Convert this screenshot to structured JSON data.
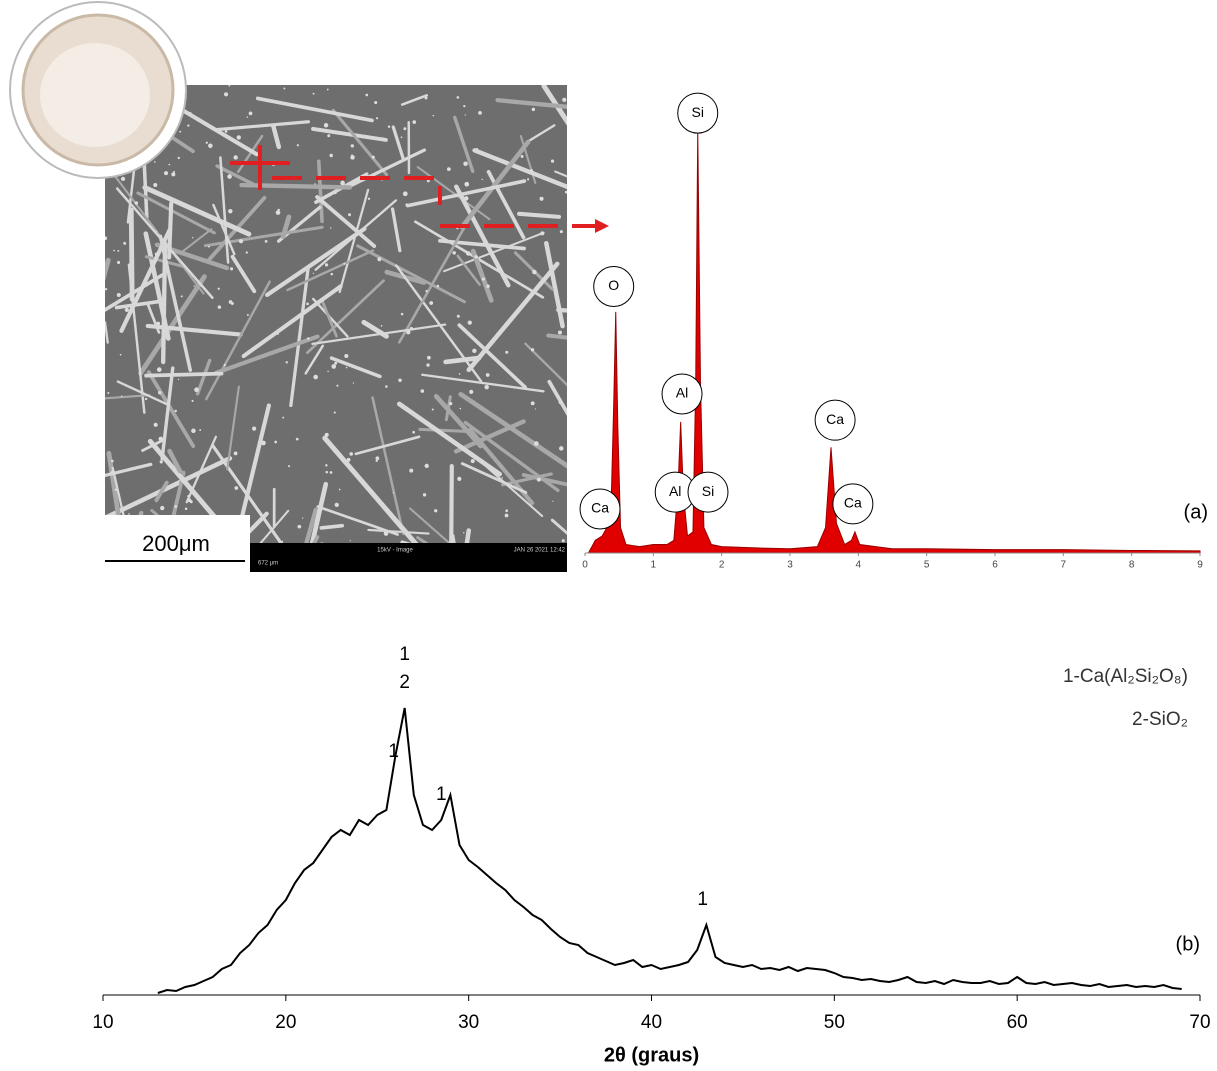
{
  "sem_image": {
    "scale_bar": "200μm",
    "footer_left": "672 μm",
    "footer_center": "15kV - Image",
    "footer_right": "JAN 26 2021 12:42"
  },
  "chart_data": [
    {
      "type": "area",
      "panel_label": "(a)",
      "color": "#e00000",
      "x": [
        0.05,
        0.15,
        0.25,
        0.32,
        0.38,
        0.42,
        0.45,
        0.48,
        0.52,
        0.6,
        0.8,
        1.0,
        1.2,
        1.3,
        1.36,
        1.4,
        1.44,
        1.5,
        1.58,
        1.62,
        1.65,
        1.69,
        1.74,
        1.85,
        2.0,
        2.5,
        3.0,
        3.4,
        3.52,
        3.6,
        3.68,
        3.8,
        3.9,
        3.95,
        4.02,
        4.5,
        5,
        6,
        7,
        8,
        9
      ],
      "values": [
        0,
        3,
        4,
        6,
        10,
        35,
        57,
        30,
        6,
        2,
        1.5,
        2,
        2,
        3,
        15,
        31,
        14,
        4,
        5,
        40,
        100,
        40,
        6,
        2,
        1.5,
        1.2,
        1,
        1.5,
        6,
        25,
        7,
        2,
        3,
        5,
        2,
        1,
        1,
        0.8,
        0.8,
        0.6,
        0.5
      ],
      "xlim": [
        0,
        9
      ],
      "ylim": [
        0,
        100
      ],
      "xticks": [
        0,
        1,
        2,
        3,
        4,
        5,
        6,
        7,
        8,
        9
      ],
      "annotations": [
        {
          "text": "Ca",
          "x": 0.22,
          "y": 10.4
        },
        {
          "text": "O",
          "x": 0.42,
          "y": 63
        },
        {
          "text": "Al",
          "x": 1.42,
          "y": 37.6
        },
        {
          "text": "Al",
          "x": 1.32,
          "y": 14.4
        },
        {
          "text": "Si",
          "x": 1.8,
          "y": 14.4
        },
        {
          "text": "Si",
          "x": 1.65,
          "y": 104
        },
        {
          "text": "Ca",
          "x": 3.66,
          "y": 31.4
        },
        {
          "text": "Ca",
          "x": 3.92,
          "y": 11.6
        }
      ]
    },
    {
      "type": "line",
      "panel_label": "(b)",
      "color": "#000000",
      "xlabel": "2θ (graus)",
      "x": [
        13,
        13.5,
        14,
        14.5,
        15,
        15.5,
        16,
        16.5,
        17,
        17.5,
        18,
        18.5,
        19,
        19.5,
        20,
        20.5,
        21,
        21.5,
        22,
        22.5,
        23,
        23.5,
        24,
        24.5,
        25,
        25.5,
        26,
        26.5,
        27,
        27.5,
        28,
        28.5,
        29,
        29.5,
        30,
        30.5,
        31,
        31.5,
        32,
        32.5,
        33,
        33.5,
        34,
        34.5,
        35,
        35.5,
        36,
        36.5,
        37,
        37.5,
        38,
        38.5,
        39,
        39.5,
        40,
        40.5,
        41,
        41.5,
        42,
        42.5,
        43,
        43.5,
        44,
        44.5,
        45,
        45.5,
        46,
        46.5,
        47,
        47.5,
        48,
        48.5,
        49,
        49.5,
        50,
        50.5,
        51,
        51.5,
        52,
        52.5,
        53,
        53.5,
        54,
        54.5,
        55,
        55.5,
        56,
        56.5,
        57,
        57.5,
        58,
        58.5,
        59,
        59.5,
        60,
        60.5,
        61,
        61.5,
        62,
        62.5,
        63,
        63.5,
        64,
        64.5,
        65,
        65.5,
        66,
        66.5,
        67,
        67.5,
        68,
        68.5,
        69
      ],
      "values": [
        2,
        5,
        4,
        8,
        10,
        14,
        18,
        26,
        30,
        42,
        50,
        62,
        70,
        85,
        95,
        112,
        125,
        132,
        145,
        158,
        165,
        160,
        175,
        170,
        180,
        185,
        240,
        287,
        200,
        170,
        165,
        175,
        200,
        150,
        135,
        128,
        120,
        112,
        105,
        95,
        88,
        80,
        75,
        66,
        58,
        52,
        50,
        42,
        38,
        34,
        30,
        32,
        35,
        28,
        30,
        26,
        28,
        30,
        33,
        45,
        70,
        38,
        32,
        30,
        28,
        30,
        26,
        27,
        25,
        28,
        24,
        27,
        26,
        25,
        22,
        18,
        17,
        15,
        16,
        14,
        13,
        15,
        18,
        13,
        12,
        14,
        11,
        15,
        13,
        12,
        12,
        14,
        11,
        12,
        18,
        12,
        11,
        13,
        10,
        11,
        12,
        10,
        9,
        11,
        8,
        9,
        10,
        8,
        9,
        8,
        10,
        7,
        6
      ],
      "xlim": [
        10,
        70
      ],
      "ylim": [
        0,
        300
      ],
      "xticks": [
        10,
        20,
        30,
        40,
        50,
        60,
        70
      ],
      "legend": [
        "1-Ca(Al₂Si₂O₈)",
        "2-SiO₂"
      ],
      "annotations": [
        {
          "text": "1",
          "x": 25.9,
          "y": 243
        },
        {
          "text": "1",
          "x": 26.5,
          "y": 340
        },
        {
          "text": "2",
          "x": 26.5,
          "y": 312
        },
        {
          "text": "1",
          "x": 28.5,
          "y": 200
        },
        {
          "text": "1",
          "x": 42.8,
          "y": 95
        }
      ]
    }
  ]
}
